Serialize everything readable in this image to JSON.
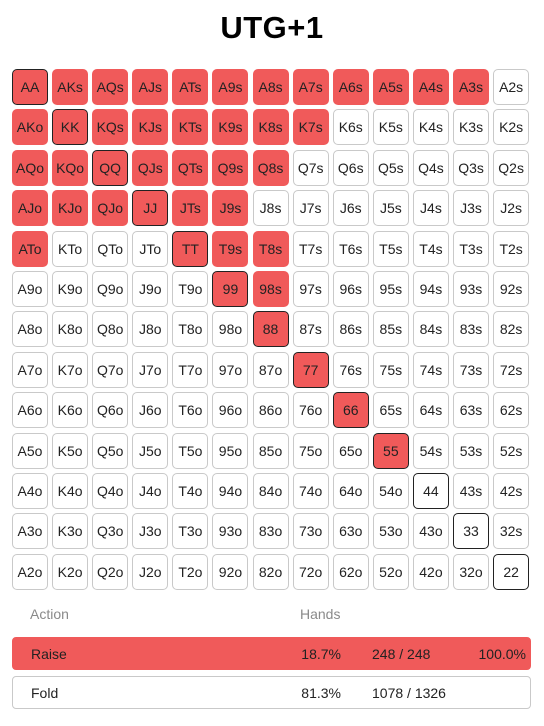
{
  "title": "UTG+1",
  "colors": {
    "raise": "#f05a5a",
    "fold": "#ffffff",
    "pair_outline": "#222222"
  },
  "grid": [
    [
      "AA",
      "AKs",
      "AQs",
      "AJs",
      "ATs",
      "A9s",
      "A8s",
      "A7s",
      "A6s",
      "A5s",
      "A4s",
      "A3s",
      "A2s"
    ],
    [
      "AKo",
      "KK",
      "KQs",
      "KJs",
      "KTs",
      "K9s",
      "K8s",
      "K7s",
      "K6s",
      "K5s",
      "K4s",
      "K3s",
      "K2s"
    ],
    [
      "AQo",
      "KQo",
      "QQ",
      "QJs",
      "QTs",
      "Q9s",
      "Q8s",
      "Q7s",
      "Q6s",
      "Q5s",
      "Q4s",
      "Q3s",
      "Q2s"
    ],
    [
      "AJo",
      "KJo",
      "QJo",
      "JJ",
      "JTs",
      "J9s",
      "J8s",
      "J7s",
      "J6s",
      "J5s",
      "J4s",
      "J3s",
      "J2s"
    ],
    [
      "ATo",
      "KTo",
      "QTo",
      "JTo",
      "TT",
      "T9s",
      "T8s",
      "T7s",
      "T6s",
      "T5s",
      "T4s",
      "T3s",
      "T2s"
    ],
    [
      "A9o",
      "K9o",
      "Q9o",
      "J9o",
      "T9o",
      "99",
      "98s",
      "97s",
      "96s",
      "95s",
      "94s",
      "93s",
      "92s"
    ],
    [
      "A8o",
      "K8o",
      "Q8o",
      "J8o",
      "T8o",
      "98o",
      "88",
      "87s",
      "86s",
      "85s",
      "84s",
      "83s",
      "82s"
    ],
    [
      "A7o",
      "K7o",
      "Q7o",
      "J7o",
      "T7o",
      "97o",
      "87o",
      "77",
      "76s",
      "75s",
      "74s",
      "73s",
      "72s"
    ],
    [
      "A6o",
      "K6o",
      "Q6o",
      "J6o",
      "T6o",
      "96o",
      "86o",
      "76o",
      "66",
      "65s",
      "64s",
      "63s",
      "62s"
    ],
    [
      "A5o",
      "K5o",
      "Q5o",
      "J5o",
      "T5o",
      "95o",
      "85o",
      "75o",
      "65o",
      "55",
      "54s",
      "53s",
      "52s"
    ],
    [
      "A4o",
      "K4o",
      "Q4o",
      "J4o",
      "T4o",
      "94o",
      "84o",
      "74o",
      "64o",
      "54o",
      "44",
      "43s",
      "42s"
    ],
    [
      "A3o",
      "K3o",
      "Q3o",
      "J3o",
      "T3o",
      "93o",
      "83o",
      "73o",
      "63o",
      "53o",
      "43o",
      "33",
      "32s"
    ],
    [
      "A2o",
      "K2o",
      "Q2o",
      "J2o",
      "T2o",
      "92o",
      "82o",
      "72o",
      "62o",
      "52o",
      "42o",
      "32o",
      "22"
    ]
  ],
  "raise_hands": [
    "AA",
    "AKs",
    "AQs",
    "AJs",
    "ATs",
    "A9s",
    "A8s",
    "A7s",
    "A6s",
    "A5s",
    "A4s",
    "A3s",
    "AKo",
    "KK",
    "KQs",
    "KJs",
    "KTs",
    "K9s",
    "K8s",
    "K7s",
    "AQo",
    "KQo",
    "QQ",
    "QJs",
    "QTs",
    "Q9s",
    "Q8s",
    "AJo",
    "KJo",
    "QJo",
    "JJ",
    "JTs",
    "J9s",
    "ATo",
    "TT",
    "T9s",
    "T8s",
    "99",
    "98s",
    "88",
    "77",
    "66",
    "55"
  ],
  "summary": {
    "action_header": "Action",
    "hands_header": "Hands",
    "rows": [
      {
        "action": "Raise",
        "percent": "18.7%",
        "combos": "248 / 248",
        "share": "100.0%"
      },
      {
        "action": "Fold",
        "percent": "81.3%",
        "combos": "1078 / 1326",
        "share": ""
      }
    ]
  }
}
